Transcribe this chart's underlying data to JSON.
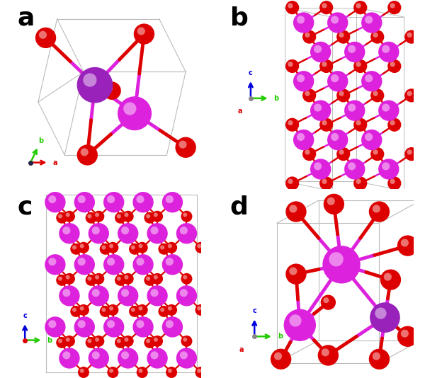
{
  "fig_width": 6.0,
  "fig_height": 5.34,
  "background_color": "#ffffff",
  "panel_labels": [
    "a",
    "b",
    "c",
    "d"
  ],
  "panel_label_fontsize": 26,
  "panel_label_weight": "bold",
  "magenta_color": "#DD22DD",
  "red_color": "#DD0000",
  "axis_a_color": "#DD0000",
  "axis_b_color": "#22CC00",
  "axis_c_color": "#0000DD",
  "box_color": "#bbbbbb"
}
